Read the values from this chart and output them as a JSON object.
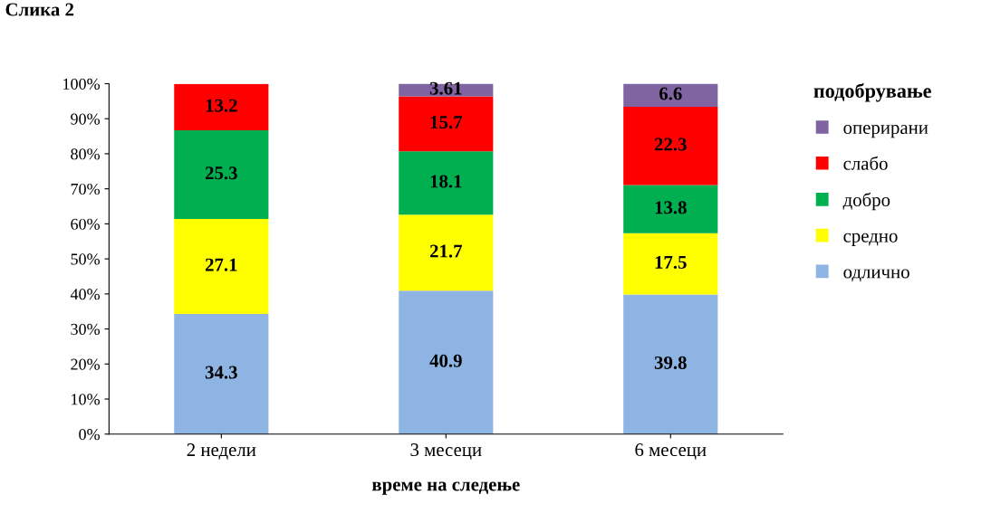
{
  "chart_data": {
    "type": "bar",
    "stacked": true,
    "xlabel": "време на следење",
    "legend_title": "подобрување",
    "legend": "right",
    "grid": false,
    "data_labels": true,
    "categories": [
      "2 недели",
      "3 месеци",
      "6 месеци"
    ],
    "series": [
      {
        "name": "одлично",
        "color": "#8eb4e3",
        "values": [
          34.3,
          40.9,
          39.8
        ]
      },
      {
        "name": "средно",
        "color": "#ffff00",
        "values": [
          27.1,
          21.7,
          17.5
        ]
      },
      {
        "name": "добро",
        "color": "#00b050",
        "values": [
          25.3,
          18.1,
          13.8
        ]
      },
      {
        "name": "слабо",
        "color": "#ff0000",
        "values": [
          13.2,
          15.7,
          22.3
        ]
      },
      {
        "name": "оперирани",
        "color": "#8064a2",
        "values": [
          null,
          3.61,
          6.6
        ]
      }
    ],
    "ylim": [
      0,
      100
    ],
    "yticks": [
      {
        "value": 0,
        "label": "0%"
      },
      {
        "value": 10,
        "label": "10%"
      },
      {
        "value": 20,
        "label": "20%"
      },
      {
        "value": 30,
        "label": "30%"
      },
      {
        "value": 40,
        "label": "40%"
      },
      {
        "value": 50,
        "label": "50%"
      },
      {
        "value": 60,
        "label": "60%"
      },
      {
        "value": 70,
        "label": "70%"
      },
      {
        "value": 80,
        "label": "80%"
      },
      {
        "value": 90,
        "label": "90%"
      },
      {
        "value": 100,
        "label": "100%"
      }
    ],
    "annotations": [
      "Слика 2"
    ]
  }
}
